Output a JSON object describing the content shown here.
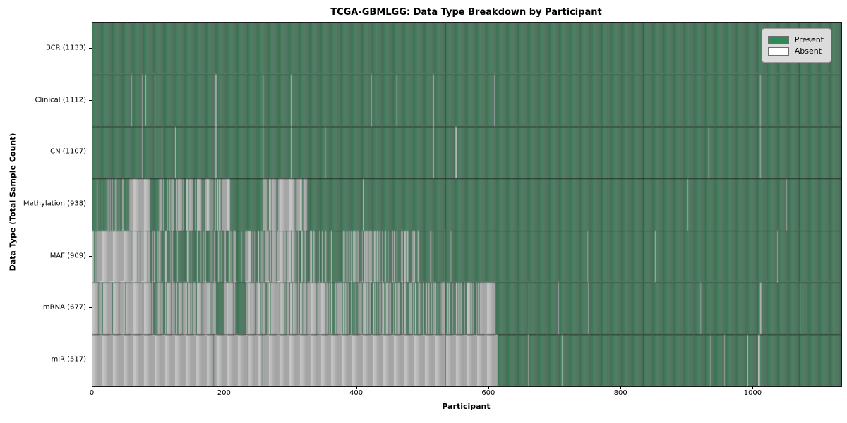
{
  "chart_data": {
    "type": "heatmap",
    "title": "TCGA-GBMLGG: Data Type Breakdown by Participant",
    "xlabel": "Participant",
    "ylabel": "Data Type (Total Sample Count)",
    "n_participants": 1133,
    "x_ticks": [
      0,
      200,
      400,
      600,
      800,
      1000
    ],
    "colors": {
      "present": "#2e8b57",
      "absent": "#ffffff",
      "bar_edge": "rgba(70,70,70,0.55)",
      "row_divider": "rgba(25,25,25,0.85)",
      "legend_bg": "#dcdcdc"
    },
    "legend": [
      {
        "label": "Present",
        "color": "#2e8b57"
      },
      {
        "label": "Absent",
        "color": "#ffffff"
      }
    ],
    "legend_position": "upper right",
    "grid": false,
    "rows": [
      {
        "name": "BCR",
        "label": "BCR (1133)",
        "total": 1133,
        "absent_segments": []
      },
      {
        "name": "Clinical",
        "label": "Clinical (1112)",
        "total": 1112,
        "absent_segments": [
          [
            59,
            60,
            1
          ],
          [
            75,
            76,
            1
          ],
          [
            80,
            81,
            1
          ],
          [
            94,
            95,
            1
          ],
          [
            185,
            188,
            1
          ],
          [
            258,
            259,
            1
          ],
          [
            300,
            301,
            1
          ],
          [
            422,
            423,
            1
          ],
          [
            460,
            461,
            1
          ],
          [
            515,
            517,
            1
          ],
          [
            608,
            609,
            1
          ],
          [
            1010,
            1011,
            1
          ]
        ]
      },
      {
        "name": "CN",
        "label": "CN (1107)",
        "total": 1107,
        "absent_segments": [
          [
            75,
            76,
            1
          ],
          [
            94,
            95,
            1
          ],
          [
            105,
            106,
            1
          ],
          [
            125,
            126,
            1
          ],
          [
            185,
            188,
            1
          ],
          [
            258,
            259,
            1
          ],
          [
            300,
            301,
            1
          ],
          [
            352,
            353,
            1
          ],
          [
            515,
            517,
            1
          ],
          [
            549,
            551,
            1
          ],
          [
            932,
            933,
            1
          ],
          [
            1010,
            1011,
            1
          ]
        ]
      },
      {
        "name": "Methylation",
        "label": "Methylation (938)",
        "total": 938,
        "absent_segments": [
          [
            0,
            57,
            0.38
          ],
          [
            57,
            87,
            1
          ],
          [
            100,
            155,
            0.5
          ],
          [
            155,
            197,
            0.68
          ],
          [
            197,
            208,
            1
          ],
          [
            258,
            326,
            0.8
          ],
          [
            409,
            410,
            1
          ],
          [
            900,
            901,
            1
          ],
          [
            1050,
            1051,
            1
          ]
        ]
      },
      {
        "name": "MAF",
        "label": "MAF (909)",
        "total": 909,
        "absent_segments": [
          [
            0,
            86,
            0.9
          ],
          [
            86,
            115,
            0.5
          ],
          [
            115,
            258,
            0.3
          ],
          [
            258,
            307,
            0.7
          ],
          [
            307,
            383,
            0.35
          ],
          [
            383,
            436,
            0.55
          ],
          [
            436,
            546,
            0.18
          ],
          [
            749,
            750,
            1
          ],
          [
            851,
            852,
            1
          ],
          [
            1036,
            1037,
            1
          ]
        ]
      },
      {
        "name": "mRNA",
        "label": "mRNA (677)",
        "total": 677,
        "absent_segments": [
          [
            0,
            86,
            0.92
          ],
          [
            86,
            160,
            0.55
          ],
          [
            160,
            187,
            0.82
          ],
          [
            199,
            219,
            0.85
          ],
          [
            233,
            383,
            0.8
          ],
          [
            383,
            588,
            0.5
          ],
          [
            588,
            610,
            1
          ],
          [
            660,
            661,
            1
          ],
          [
            705,
            706,
            1
          ],
          [
            750,
            751,
            1
          ],
          [
            920,
            921,
            1
          ],
          [
            1010,
            1012,
            1
          ],
          [
            1070,
            1071,
            1
          ]
        ]
      },
      {
        "name": "miR",
        "label": "miR (517)",
        "total": 517,
        "absent_segments": [
          [
            0,
            183,
            1
          ],
          [
            184,
            256,
            1
          ],
          [
            257,
            613,
            1
          ],
          [
            659,
            660,
            1
          ],
          [
            710,
            711,
            1
          ],
          [
            935,
            936,
            1
          ],
          [
            956,
            957,
            1
          ],
          [
            991,
            992,
            1
          ],
          [
            1007,
            1010,
            1
          ]
        ]
      }
    ]
  }
}
